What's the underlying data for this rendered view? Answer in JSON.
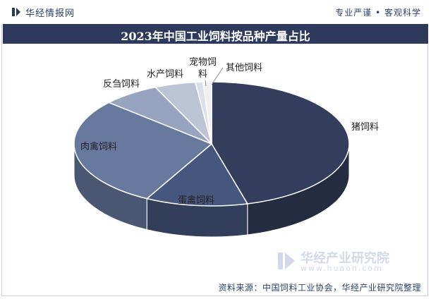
{
  "header": {
    "brand": "华经情报网",
    "slogan": "专业严谨 • 客观科学"
  },
  "title": "2023年中国工业饲料按品种产量占比",
  "source": "资料来源：中国饲料工业协会，华经产业研究院整理",
  "watermark": {
    "name": "华经产业研究院",
    "url": "www.huaon.com"
  },
  "colors": {
    "title_bg": "#2e3a5c",
    "text": "#2c3e6b"
  },
  "chart_data": {
    "type": "pie",
    "title": "2023年中国工业饲料按品种产量占比",
    "labels_shown": false,
    "slices": [
      {
        "label": "猪饲料",
        "value": 45.8,
        "color": "#333d5c"
      },
      {
        "label": "蛋禽饲料",
        "value": 12.0,
        "color": "#46577f"
      },
      {
        "label": "肉禽饲料",
        "value": 28.8,
        "color": "#67799f"
      },
      {
        "label": "反刍饲料",
        "value": 6.7,
        "color": "#97a4bf"
      },
      {
        "label": "水产饲料",
        "value": 4.8,
        "color": "#bcc4d5"
      },
      {
        "label": "宠物饲料",
        "value": 0.9,
        "color": "#dbe0ea"
      },
      {
        "label": "其他饲料",
        "value": 1.0,
        "color": "#edf0f5"
      }
    ]
  }
}
